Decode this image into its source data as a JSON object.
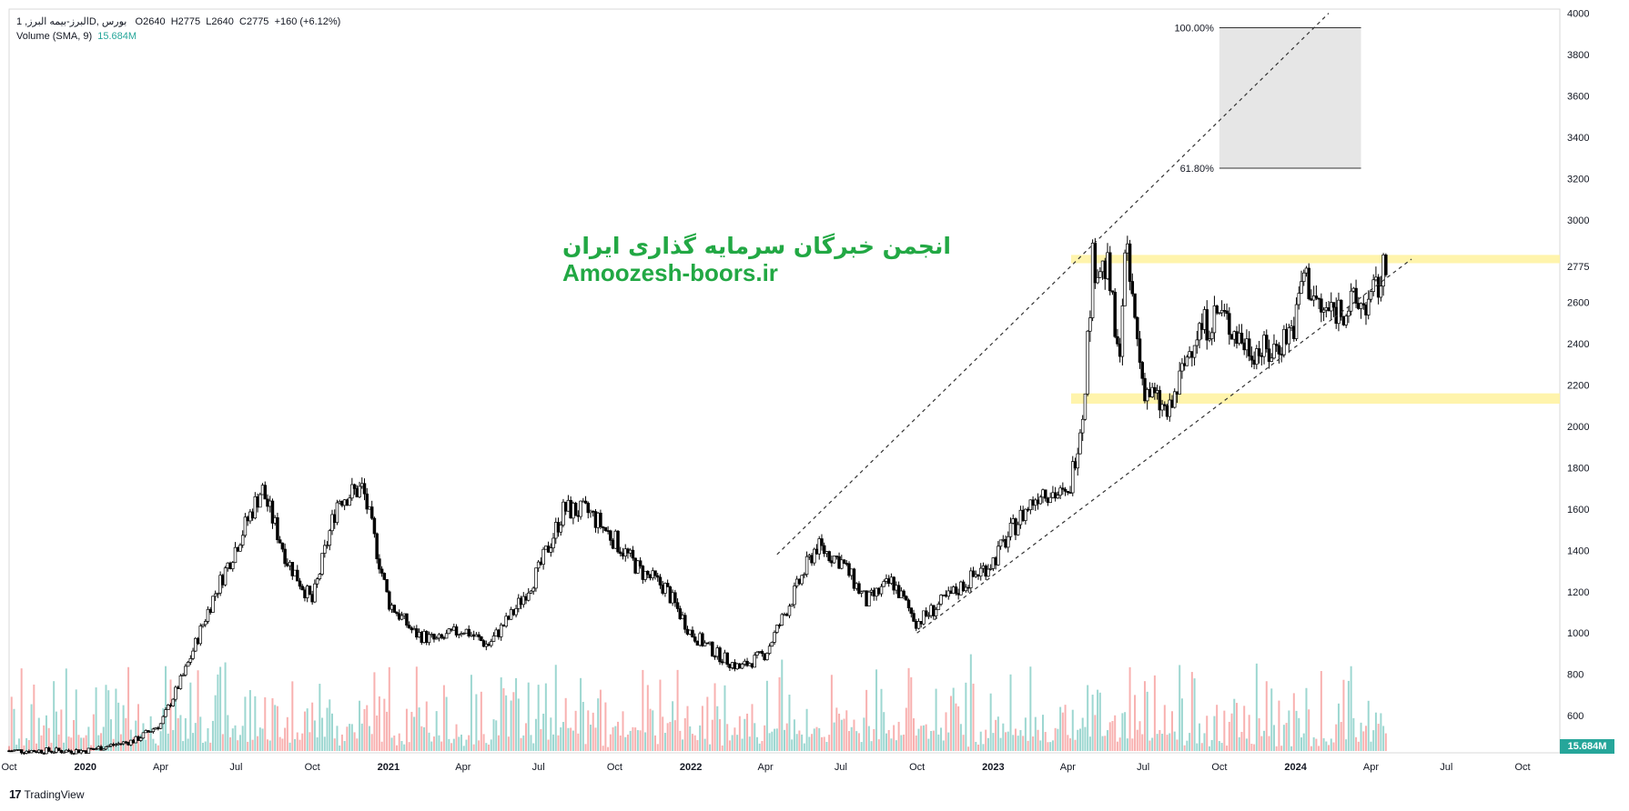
{
  "legend": {
    "symbol": "البرز-بیمه البرز, 1D, بورس",
    "open_label": "O",
    "open": "2640",
    "high_label": "H",
    "high": "2775",
    "low_label": "L",
    "low": "2640",
    "close_label": "C",
    "close": "2775",
    "change": "+160 (+6.12%)",
    "volume_label": "Volume (SMA, 9)",
    "volume_value": "15.684M"
  },
  "watermark": {
    "persian": "انجمن خبرگان سرمایه گذاری ایران",
    "english": "Amoozesh-boors.ir"
  },
  "footer": {
    "brand_icon": "17",
    "brand": "TradingView"
  },
  "chart_data": {
    "type": "candlestick",
    "price_axis": {
      "ticks": [
        600,
        800,
        1000,
        1200,
        1400,
        1600,
        1800,
        2000,
        2200,
        2400,
        2600,
        3000,
        3200,
        3400,
        3600,
        3800,
        4000
      ],
      "current_price_label": "2775",
      "range": [
        420,
        4020
      ]
    },
    "time_axis": {
      "ticks": [
        "Oct",
        "2020",
        "Apr",
        "Jul",
        "Oct",
        "2021",
        "Apr",
        "Jul",
        "Oct",
        "2022",
        "Apr",
        "Jul",
        "Oct",
        "2023",
        "Apr",
        "Jul",
        "Oct",
        "2024",
        "Apr",
        "Jul",
        "Oct"
      ],
      "range": [
        "2019-10-01",
        "2024-11-15"
      ]
    },
    "price_path": [
      [
        "2019-10-01",
        430
      ],
      [
        "2020-01-01",
        430
      ],
      [
        "2020-03-01",
        480
      ],
      [
        "2020-04-01",
        560
      ],
      [
        "2020-05-01",
        820
      ],
      [
        "2020-06-01",
        1150
      ],
      [
        "2020-07-01",
        1420
      ],
      [
        "2020-08-01",
        1700
      ],
      [
        "2020-09-01",
        1350
      ],
      [
        "2020-10-01",
        1150
      ],
      [
        "2020-11-01",
        1650
      ],
      [
        "2020-12-01",
        1700
      ],
      [
        "2021-01-01",
        1150
      ],
      [
        "2021-02-01",
        1000
      ],
      [
        "2021-03-01",
        960
      ],
      [
        "2021-04-01",
        1020
      ],
      [
        "2021-05-01",
        940
      ],
      [
        "2021-06-01",
        1100
      ],
      [
        "2021-07-01",
        1300
      ],
      [
        "2021-08-01",
        1600
      ],
      [
        "2021-09-01",
        1580
      ],
      [
        "2021-10-01",
        1450
      ],
      [
        "2021-11-01",
        1300
      ],
      [
        "2021-12-01",
        1220
      ],
      [
        "2022-01-01",
        1000
      ],
      [
        "2022-02-01",
        900
      ],
      [
        "2022-03-01",
        830
      ],
      [
        "2022-04-01",
        900
      ],
      [
        "2022-05-01",
        1150
      ],
      [
        "2022-06-01",
        1420
      ],
      [
        "2022-07-01",
        1350
      ],
      [
        "2022-08-01",
        1150
      ],
      [
        "2022-09-01",
        1250
      ],
      [
        "2022-10-01",
        1050
      ],
      [
        "2022-11-01",
        1150
      ],
      [
        "2022-12-01",
        1250
      ],
      [
        "2023-01-01",
        1350
      ],
      [
        "2023-02-01",
        1550
      ],
      [
        "2023-03-01",
        1700
      ],
      [
        "2023-04-01",
        1650
      ],
      [
        "2023-04-20",
        2100
      ],
      [
        "2023-05-01",
        2800
      ],
      [
        "2023-05-20",
        2750
      ],
      [
        "2023-06-01",
        2300
      ],
      [
        "2023-06-10",
        2850
      ],
      [
        "2023-07-01",
        2200
      ],
      [
        "2023-08-01",
        2050
      ],
      [
        "2023-09-01",
        2450
      ],
      [
        "2023-10-01",
        2550
      ],
      [
        "2023-11-01",
        2400
      ],
      [
        "2023-12-01",
        2350
      ],
      [
        "2024-01-01",
        2500
      ],
      [
        "2024-01-10",
        2750
      ],
      [
        "2024-02-01",
        2550
      ],
      [
        "2024-03-01",
        2580
      ],
      [
        "2024-04-01",
        2600
      ],
      [
        "2024-04-20",
        2775
      ]
    ],
    "zones": [
      {
        "name": "resistance",
        "from": 2790,
        "to": 2830,
        "color": "#fff3a3"
      },
      {
        "name": "support",
        "from": 2110,
        "to": 2160,
        "color": "#fff3a3"
      }
    ],
    "fib_box": {
      "start": "2023-10-01",
      "end": "2024-03-20",
      "levels": [
        {
          "label": "100.00%",
          "price": 3930
        },
        {
          "label": "61.80%",
          "price": 3250
        }
      ],
      "color": "#e6e6e6"
    },
    "trendlines": [
      {
        "name": "upper-channel",
        "from": [
          "2022-04-15",
          1380
        ],
        "to": [
          "2024-02-10",
          4000
        ]
      },
      {
        "name": "lower-channel",
        "from": [
          "2022-10-01",
          1000
        ],
        "to": [
          "2024-05-20",
          2810
        ]
      }
    ],
    "colors": {
      "up": "#26a69a",
      "down": "#ef5350",
      "candle": "#000000"
    }
  }
}
